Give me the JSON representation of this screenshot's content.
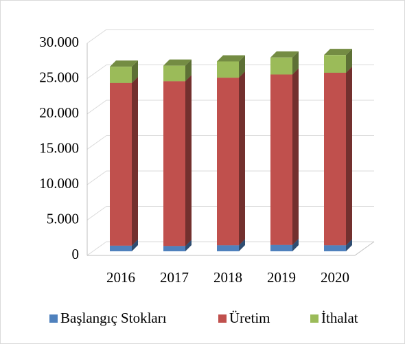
{
  "chart_data": {
    "type": "bar3d_stacked",
    "categories": [
      "2016",
      "2017",
      "2018",
      "2019",
      "2020"
    ],
    "series": [
      {
        "name": "Başlangıç Stokları",
        "color": "#4f81bd",
        "values": [
          800,
          750,
          850,
          900,
          850
        ]
      },
      {
        "name": "Üretim",
        "color": "#c0504d",
        "values": [
          23000,
          23300,
          23700,
          24100,
          24400
        ]
      },
      {
        "name": "İthalat",
        "color": "#9bbb59",
        "values": [
          2300,
          2200,
          2300,
          2400,
          2500
        ]
      }
    ],
    "ylim": [
      0,
      30000
    ],
    "yticks": [
      0,
      {
        "value": 5000,
        "label": "5.000"
      },
      {
        "value": 10000,
        "label": "10.000"
      },
      {
        "value": 15000,
        "label": "15.000"
      },
      {
        "value": 20000,
        "label": "20.000"
      },
      {
        "value": 25000,
        "label": "25.000"
      },
      {
        "value": 30000,
        "label": "30.000"
      }
    ],
    "grid": true,
    "legend": "bottom"
  }
}
